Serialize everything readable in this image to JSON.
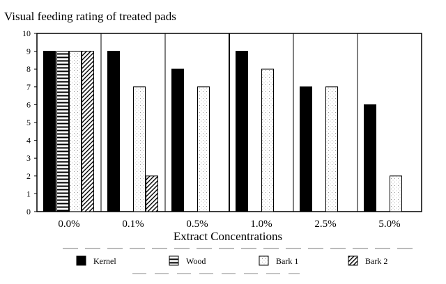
{
  "chart_data": {
    "type": "bar",
    "title": "Visual feeding rating of treated pads",
    "xlabel": "Extract Concentrations",
    "ylabel": "",
    "ylim": [
      0,
      10
    ],
    "yticks": [
      "0",
      "1",
      "2",
      "3",
      "4",
      "5",
      "6",
      "7",
      "8",
      "9",
      "10"
    ],
    "categories": [
      "0.0%",
      "0.1%",
      "0.5%",
      "1.0%",
      "2.5%",
      "5.0%"
    ],
    "series": [
      {
        "name": "Kernel",
        "values": [
          9,
          9,
          8,
          9,
          7,
          6
        ],
        "pattern": "solid"
      },
      {
        "name": "Wood",
        "values": [
          9,
          0,
          0,
          0,
          0,
          0
        ],
        "pattern": "hlines"
      },
      {
        "name": "Bark 1",
        "values": [
          9,
          7,
          7,
          8,
          7,
          2
        ],
        "pattern": "dots"
      },
      {
        "name": "Bark 2",
        "values": [
          9,
          2,
          0,
          0,
          0,
          0
        ],
        "pattern": "diag"
      }
    ],
    "legend_position": "bottom"
  }
}
